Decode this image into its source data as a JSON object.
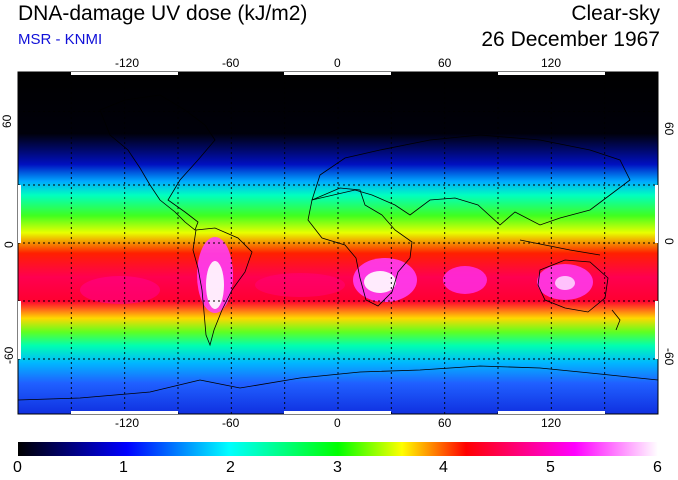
{
  "header": {
    "title": "DNA-damage UV dose (kJ/m2)",
    "subtitle": "MSR - KNMI",
    "condition": "Clear-sky",
    "date": "26 December 1967"
  },
  "map": {
    "lon_ticks": [
      "-120",
      "-60",
      "0",
      "60",
      "120"
    ],
    "lat_ticks_left": [
      "60",
      "0",
      "-60"
    ],
    "lat_ticks_right": [
      "60",
      "0",
      "-60"
    ]
  },
  "colorbar": {
    "ticks": [
      "0",
      "1",
      "2",
      "3",
      "4",
      "5",
      "6"
    ],
    "colors": [
      "#000000",
      "#0000ff",
      "#00ffff",
      "#00ff00",
      "#ffff00",
      "#ff0000",
      "#ff00ff",
      "#ffffff"
    ]
  }
}
